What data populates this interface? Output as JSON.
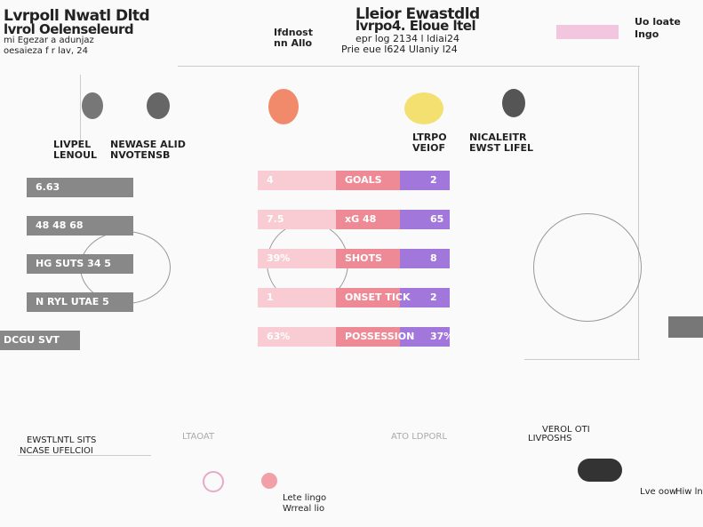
{
  "header": {
    "title": "Lvrpoll Nwatl Dltd",
    "title_line2": "lvrol Oelenseleurd",
    "subtitle": "mi Egezar a adunjaz",
    "subtitle_line2": "oesaieza f r lav, 24",
    "brand": "Ifdnost",
    "brand_line2": "nn Allo",
    "center_title": "Lleior Ewastdld",
    "center_title_line2": "lvrpo4. Eloue ltel",
    "date": "epr log 2134 l ldiai24",
    "date_line2": "Prie eue l624 Ulaniy l24",
    "logo": "Uo loate",
    "logo_line2": "Ingo"
  },
  "teams": [
    {
      "name": "LIVPEL",
      "name_line2": "LENOUL"
    },
    {
      "name": "NEWASE ALID",
      "name_line2": "NVOTENSB"
    },
    {
      "name": "LTRPO",
      "name_line2": "VEIOF"
    },
    {
      "name": "NICALEITR",
      "name_line2": "EWST LIFEL"
    }
  ],
  "stats": [
    {
      "left": "4",
      "label": "GOALS",
      "right": "2"
    },
    {
      "left": "7.5",
      "label": "xG 48",
      "right": "65"
    },
    {
      "left": "39%",
      "label": "SHOTS",
      "right": "8"
    },
    {
      "left": "1",
      "label": "ONSET TICK",
      "right": "2"
    },
    {
      "left": "63%",
      "label": "POSSESSION",
      "right": "37%"
    }
  ],
  "left_panel": [
    "6.63",
    "48 48 68",
    "HG SUTS 34 5",
    "N RYL UTAE 5",
    "DCGU SVT"
  ],
  "bottom": {
    "left": "EWSTLNTL SITS",
    "left_line2": "NCASE UFELCIOI",
    "mid_left": "LTAOAT",
    "mid_right": "ATO LDPORL",
    "right": "VEROL OTI",
    "right_line2": "LIVPOSHS"
  },
  "footer": {
    "center": "Lete lingo",
    "center_line2": "Wrreal lio",
    "right_a": "Lve oow",
    "right_b": "Hiw lnh"
  }
}
